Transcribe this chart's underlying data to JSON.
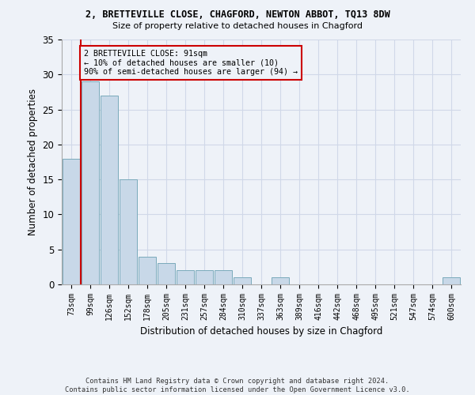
{
  "title1": "2, BRETTEVILLE CLOSE, CHAGFORD, NEWTON ABBOT, TQ13 8DW",
  "title2": "Size of property relative to detached houses in Chagford",
  "xlabel": "Distribution of detached houses by size in Chagford",
  "ylabel": "Number of detached properties",
  "categories": [
    "73sqm",
    "99sqm",
    "126sqm",
    "152sqm",
    "178sqm",
    "205sqm",
    "231sqm",
    "257sqm",
    "284sqm",
    "310sqm",
    "337sqm",
    "363sqm",
    "389sqm",
    "416sqm",
    "442sqm",
    "468sqm",
    "495sqm",
    "521sqm",
    "547sqm",
    "574sqm",
    "600sqm"
  ],
  "values": [
    18,
    29,
    27,
    15,
    4,
    3,
    2,
    2,
    2,
    1,
    0,
    1,
    0,
    0,
    0,
    0,
    0,
    0,
    0,
    0,
    1
  ],
  "bar_color": "#c8d8e8",
  "bar_edge_color": "#7aaabb",
  "highlight_line_color": "#cc0000",
  "annotation_line1": "2 BRETTEVILLE CLOSE: 91sqm",
  "annotation_line2": "← 10% of detached houses are smaller (10)",
  "annotation_line3": "90% of semi-detached houses are larger (94) →",
  "annotation_box_color": "#cc0000",
  "ylim": [
    0,
    35
  ],
  "yticks": [
    0,
    5,
    10,
    15,
    20,
    25,
    30,
    35
  ],
  "footer": "Contains HM Land Registry data © Crown copyright and database right 2024.\nContains public sector information licensed under the Open Government Licence v3.0.",
  "grid_color": "#d0d8e8",
  "background_color": "#eef2f8"
}
